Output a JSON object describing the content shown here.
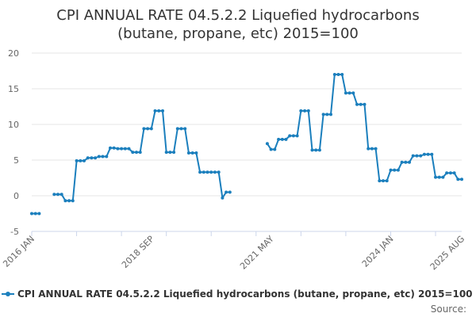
{
  "chart_data": {
    "type": "line",
    "title": "CPI ANNUAL RATE 04.5.2.2 Liquefied hydrocarbons (butane, propane, etc) 2015=100",
    "title_lines": [
      "CPI ANNUAL RATE 04.5.2.2 Liquefied hydrocarbons",
      "(butane, propane, etc) 2015=100"
    ],
    "xlabel": "",
    "ylabel": "",
    "x_range": [
      "2016-01",
      "2025-08"
    ],
    "ylim": [
      -5,
      20
    ],
    "y_ticks": [
      -5,
      0,
      5,
      10,
      15,
      20
    ],
    "x_ticks": [
      {
        "label": "2016 JAN",
        "date": "2016-01"
      },
      {
        "label": "2018 SEP",
        "date": "2018-09"
      },
      {
        "label": "2021 MAY",
        "date": "2021-05"
      },
      {
        "label": "2024 JAN",
        "date": "2024-01"
      },
      {
        "label": "2025 AUG",
        "date": "2025-08"
      }
    ],
    "grid": "horizontal",
    "legend_position": "bottom",
    "series": [
      {
        "name": "CPI ANNUAL RATE 04.5.2.2 Liquefied hydrocarbons (butane, propane, etc) 2015=100",
        "color": "#1b7fbd",
        "points": [
          [
            "2016-01",
            -2.5
          ],
          [
            "2016-02",
            -2.5
          ],
          [
            "2016-03",
            -2.5
          ],
          [
            "2016-04",
            null
          ],
          [
            "2016-05",
            null
          ],
          [
            "2016-06",
            null
          ],
          [
            "2016-07",
            0.2
          ],
          [
            "2016-08",
            0.2
          ],
          [
            "2016-09",
            0.2
          ],
          [
            "2016-10",
            -0.7
          ],
          [
            "2016-11",
            -0.7
          ],
          [
            "2016-12",
            -0.7
          ],
          [
            "2017-01",
            4.9
          ],
          [
            "2017-02",
            4.9
          ],
          [
            "2017-03",
            4.9
          ],
          [
            "2017-04",
            5.3
          ],
          [
            "2017-05",
            5.3
          ],
          [
            "2017-06",
            5.3
          ],
          [
            "2017-07",
            5.5
          ],
          [
            "2017-08",
            5.5
          ],
          [
            "2017-09",
            5.5
          ],
          [
            "2017-10",
            6.7
          ],
          [
            "2017-11",
            6.7
          ],
          [
            "2017-12",
            6.6
          ],
          [
            "2018-01",
            6.6
          ],
          [
            "2018-02",
            6.6
          ],
          [
            "2018-03",
            6.6
          ],
          [
            "2018-04",
            6.1
          ],
          [
            "2018-05",
            6.1
          ],
          [
            "2018-06",
            6.1
          ],
          [
            "2018-07",
            9.4
          ],
          [
            "2018-08",
            9.4
          ],
          [
            "2018-09",
            9.4
          ],
          [
            "2018-10",
            11.9
          ],
          [
            "2018-11",
            11.9
          ],
          [
            "2018-12",
            11.9
          ],
          [
            "2019-01",
            6.1
          ],
          [
            "2019-02",
            6.1
          ],
          [
            "2019-03",
            6.1
          ],
          [
            "2019-04",
            9.4
          ],
          [
            "2019-05",
            9.4
          ],
          [
            "2019-06",
            9.4
          ],
          [
            "2019-07",
            6.0
          ],
          [
            "2019-08",
            6.0
          ],
          [
            "2019-09",
            6.0
          ],
          [
            "2019-10",
            3.3
          ],
          [
            "2019-11",
            3.3
          ],
          [
            "2019-12",
            3.3
          ],
          [
            "2020-01",
            3.3
          ],
          [
            "2020-02",
            3.3
          ],
          [
            "2020-03",
            3.3
          ],
          [
            "2020-04",
            -0.3
          ],
          [
            "2020-05",
            0.5
          ],
          [
            "2020-06",
            0.5
          ],
          [
            "2020-07",
            null
          ],
          [
            "2020-08",
            null
          ],
          [
            "2020-09",
            null
          ],
          [
            "2020-10",
            null
          ],
          [
            "2020-11",
            null
          ],
          [
            "2020-12",
            null
          ],
          [
            "2021-01",
            null
          ],
          [
            "2021-02",
            null
          ],
          [
            "2021-03",
            null
          ],
          [
            "2021-04",
            7.3
          ],
          [
            "2021-05",
            6.5
          ],
          [
            "2021-06",
            6.5
          ],
          [
            "2021-07",
            7.9
          ],
          [
            "2021-08",
            7.9
          ],
          [
            "2021-09",
            7.9
          ],
          [
            "2021-10",
            8.4
          ],
          [
            "2021-11",
            8.4
          ],
          [
            "2021-12",
            8.4
          ],
          [
            "2022-01",
            11.9
          ],
          [
            "2022-02",
            11.9
          ],
          [
            "2022-03",
            11.9
          ],
          [
            "2022-04",
            6.4
          ],
          [
            "2022-05",
            6.4
          ],
          [
            "2022-06",
            6.4
          ],
          [
            "2022-07",
            11.4
          ],
          [
            "2022-08",
            11.4
          ],
          [
            "2022-09",
            11.4
          ],
          [
            "2022-10",
            17.0
          ],
          [
            "2022-11",
            17.0
          ],
          [
            "2022-12",
            17.0
          ],
          [
            "2023-01",
            14.4
          ],
          [
            "2023-02",
            14.4
          ],
          [
            "2023-03",
            14.4
          ],
          [
            "2023-04",
            12.8
          ],
          [
            "2023-05",
            12.8
          ],
          [
            "2023-06",
            12.8
          ],
          [
            "2023-07",
            6.6
          ],
          [
            "2023-08",
            6.6
          ],
          [
            "2023-09",
            6.6
          ],
          [
            "2023-10",
            2.1
          ],
          [
            "2023-11",
            2.1
          ],
          [
            "2023-12",
            2.1
          ],
          [
            "2024-01",
            3.6
          ],
          [
            "2024-02",
            3.6
          ],
          [
            "2024-03",
            3.6
          ],
          [
            "2024-04",
            4.7
          ],
          [
            "2024-05",
            4.7
          ],
          [
            "2024-06",
            4.7
          ],
          [
            "2024-07",
            5.6
          ],
          [
            "2024-08",
            5.6
          ],
          [
            "2024-09",
            5.6
          ],
          [
            "2024-10",
            5.8
          ],
          [
            "2024-11",
            5.8
          ],
          [
            "2024-12",
            5.8
          ],
          [
            "2025-01",
            2.6
          ],
          [
            "2025-02",
            2.6
          ],
          [
            "2025-03",
            2.6
          ],
          [
            "2025-04",
            3.2
          ],
          [
            "2025-05",
            3.2
          ],
          [
            "2025-06",
            3.2
          ],
          [
            "2025-07",
            2.3
          ],
          [
            "2025-08",
            2.3
          ]
        ]
      }
    ]
  },
  "source_label": "Source:"
}
